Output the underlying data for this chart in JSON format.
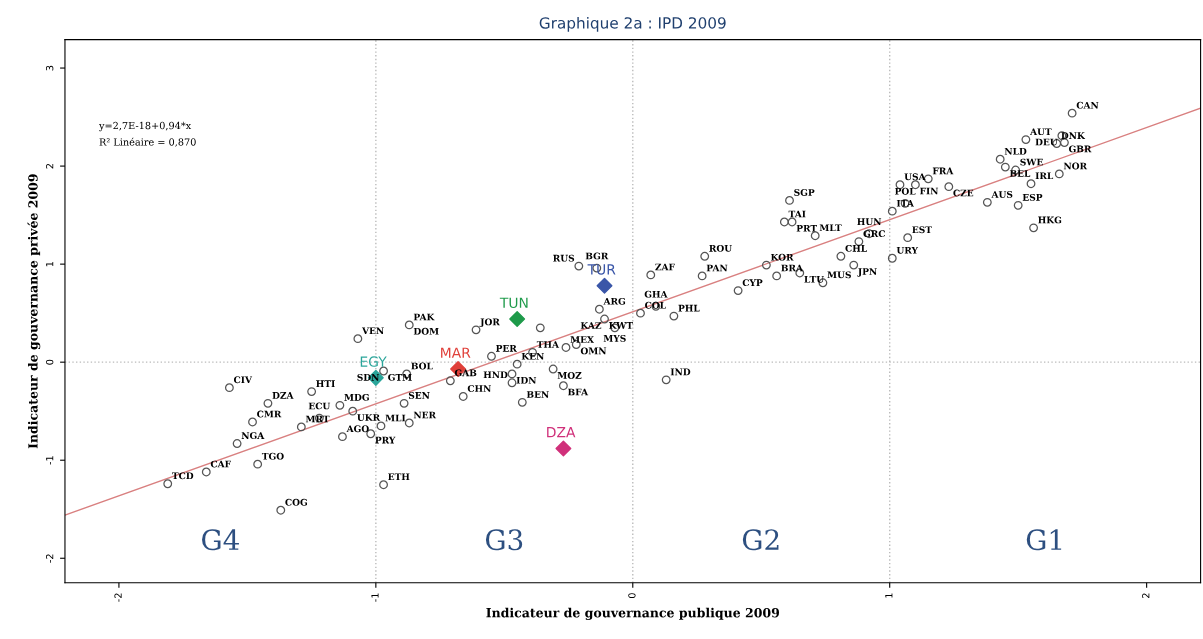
{
  "chart_data": {
    "type": "scatter",
    "title": "Graphique 2a : IPD 2009",
    "xlabel": "Indicateur de gouvernance publique 2009",
    "ylabel": "Indicateur de gouvernance privée 2009",
    "xlim": [
      -2.21,
      2.21
    ],
    "ylim": [
      -2.25,
      3.29
    ],
    "xticks": [
      -2,
      -1,
      0,
      1,
      2
    ],
    "yticks": [
      -2,
      -1,
      0,
      1,
      2,
      3
    ],
    "grid": false,
    "ref_lines": [
      {
        "axis": "x",
        "value": -1,
        "color": "#bbbbbb",
        "line_style": "dotted"
      },
      {
        "axis": "x",
        "value": 0,
        "color": "#bbbbbb",
        "line_style": "dotted"
      },
      {
        "axis": "x",
        "value": 1,
        "color": "#bbbbbb",
        "line_style": "dotted"
      },
      {
        "axis": "y",
        "value": 0,
        "color": "#bbbbbb",
        "line_style": "dotted"
      }
    ],
    "series": [
      {
        "marker": "circle",
        "color": "#555555",
        "x": [
          -1.07,
          -0.87,
          -1.57,
          -1.25,
          -1.42,
          -1.48,
          -1.54,
          -1.66,
          -1.81,
          -1.46,
          -1.37,
          -1.29,
          -1.22,
          -1.14,
          -1.09,
          -1.13,
          -1.02,
          -0.98,
          -0.97,
          -0.97,
          -0.88,
          -0.89,
          -0.87,
          -0.71,
          -0.66,
          -0.61,
          -0.55,
          -0.45,
          -0.47,
          -0.47,
          -0.43,
          -0.39,
          -0.36,
          -0.26,
          -0.22,
          -0.31,
          -0.27,
          -0.21,
          -0.14,
          -0.13,
          -0.11,
          -0.07,
          0.03,
          0.07,
          0.09,
          0.16,
          0.13,
          0.28,
          0.27,
          0.41,
          0.52,
          0.56,
          0.59,
          0.62,
          0.61,
          0.65,
          0.71,
          0.74,
          0.81,
          0.86,
          0.88,
          0.92,
          1.01,
          1.01,
          1.04,
          1.06,
          1.07,
          1.1,
          1.15,
          1.23,
          1.38,
          1.43,
          1.45,
          1.49,
          1.5,
          1.53,
          1.55,
          1.56,
          1.65,
          1.66,
          1.67,
          1.68,
          1.71
        ],
        "values": [
          0.24,
          0.38,
          -0.26,
          -0.3,
          -0.42,
          -0.61,
          -0.83,
          -1.12,
          -1.24,
          -1.04,
          -1.51,
          -0.66,
          -0.57,
          -0.44,
          -0.5,
          -0.76,
          -0.73,
          -0.65,
          -1.25,
          -0.09,
          -0.12,
          -0.42,
          -0.62,
          -0.19,
          -0.35,
          0.33,
          0.06,
          -0.02,
          -0.12,
          -0.21,
          -0.41,
          0.1,
          0.35,
          0.15,
          0.18,
          -0.07,
          -0.24,
          0.98,
          0.96,
          0.54,
          0.44,
          0.35,
          0.5,
          0.89,
          0.57,
          0.47,
          -0.18,
          1.08,
          0.88,
          0.73,
          0.99,
          0.88,
          1.43,
          1.43,
          1.65,
          0.91,
          1.29,
          0.81,
          1.08,
          0.99,
          1.23,
          1.31,
          1.54,
          1.06,
          1.81,
          1.62,
          1.27,
          1.81,
          1.87,
          1.79,
          1.63,
          2.07,
          1.99,
          1.96,
          1.6,
          2.27,
          1.82,
          1.37,
          2.23,
          1.92,
          2.31,
          2.24,
          2.54
        ]
      },
      {
        "marker": "diamond",
        "name": "EGY",
        "color": "#2aa59a",
        "x": [
          -1.0
        ],
        "values": [
          -0.16
        ]
      },
      {
        "marker": "diamond",
        "name": "MAR",
        "color": "#e0403a",
        "x": [
          -0.68
        ],
        "values": [
          -0.07
        ]
      },
      {
        "marker": "diamond",
        "name": "TUN",
        "color": "#1e9a4a",
        "x": [
          -0.45
        ],
        "values": [
          0.44
        ]
      },
      {
        "marker": "diamond",
        "name": "TUR",
        "color": "#3a56a8",
        "x": [
          -0.11
        ],
        "values": [
          0.78
        ]
      },
      {
        "marker": "diamond",
        "name": "DZA",
        "color": "#d0307a",
        "x": [
          -0.27
        ],
        "values": [
          -0.88
        ]
      },
      {
        "type": "line",
        "marker": "none",
        "color": "#d98080",
        "x": [
          -2.21,
          2.21
        ],
        "values": [
          -1.56,
          2.59
        ]
      }
    ],
    "annotations": [
      "y=2,7E-18+0,94*x",
      "R² Linéaire = 0,870",
      "G4",
      "G3",
      "G2",
      "G1",
      {
        "text": "VEN",
        "x": -1.07,
        "y": 0.24
      },
      {
        "text": "PAK",
        "x": -0.87,
        "y": 0.38
      },
      {
        "text": "DOM",
        "x": -0.87,
        "y": 0.38
      },
      {
        "text": "CIV",
        "x": -1.57,
        "y": -0.26
      },
      {
        "text": "HTI",
        "x": -1.25,
        "y": -0.3
      },
      {
        "text": "DZA",
        "x": -1.42,
        "y": -0.42
      },
      {
        "text": "CMR",
        "x": -1.48,
        "y": -0.61
      },
      {
        "text": "NGA",
        "x": -1.54,
        "y": -0.83
      },
      {
        "text": "CAF",
        "x": -1.66,
        "y": -1.12
      },
      {
        "text": "TCD",
        "x": -1.81,
        "y": -1.24
      },
      {
        "text": "TGO",
        "x": -1.46,
        "y": -1.04
      },
      {
        "text": "COG",
        "x": -1.37,
        "y": -1.51
      },
      {
        "text": "MRT",
        "x": -1.29,
        "y": -0.66
      },
      {
        "text": "ECU",
        "x": -1.22,
        "y": -0.57
      },
      {
        "text": "MDG",
        "x": -1.14,
        "y": -0.44
      },
      {
        "text": "UKR",
        "x": -1.09,
        "y": -0.5
      },
      {
        "text": "AGO",
        "x": -1.13,
        "y": -0.76
      },
      {
        "text": "PRY",
        "x": -1.02,
        "y": -0.73
      },
      {
        "text": "MLI",
        "x": -0.98,
        "y": -0.65
      },
      {
        "text": "ETH",
        "x": -0.97,
        "y": -1.25
      },
      {
        "text": "GTM",
        "x": -0.97,
        "y": -0.09
      },
      {
        "text": "SDN",
        "x": -0.97,
        "y": -0.09
      },
      {
        "text": "BOL",
        "x": -0.88,
        "y": -0.12
      },
      {
        "text": "SEN",
        "x": -0.89,
        "y": -0.42
      },
      {
        "text": "NER",
        "x": -0.87,
        "y": -0.62
      },
      {
        "text": "GAB",
        "x": -0.71,
        "y": -0.19
      },
      {
        "text": "CHN",
        "x": -0.66,
        "y": -0.35
      },
      {
        "text": "JOR",
        "x": -0.61,
        "y": 0.33
      },
      {
        "text": "PER",
        "x": -0.55,
        "y": 0.06
      },
      {
        "text": "KEN",
        "x": -0.45,
        "y": -0.02
      },
      {
        "text": "IDN",
        "x": -0.47,
        "y": -0.12
      },
      {
        "text": "HND",
        "x": -0.47,
        "y": -0.21
      },
      {
        "text": "BEN",
        "x": -0.43,
        "y": -0.41
      },
      {
        "text": "THA",
        "x": -0.39,
        "y": 0.1
      },
      {
        "text": "MEX",
        "x": -0.26,
        "y": 0.15
      },
      {
        "text": "OMN",
        "x": -0.22,
        "y": 0.18
      },
      {
        "text": "KAZ",
        "x": -0.22,
        "y": 0.18
      },
      {
        "text": "MOZ",
        "x": -0.31,
        "y": -0.07
      },
      {
        "text": "BFA",
        "x": -0.27,
        "y": -0.24
      },
      {
        "text": "RUS",
        "x": -0.21,
        "y": 0.98
      },
      {
        "text": "BGR",
        "x": -0.14,
        "y": 0.96
      },
      {
        "text": "ARG",
        "x": -0.13,
        "y": 0.54
      },
      {
        "text": "KWT",
        "x": -0.11,
        "y": 0.44
      },
      {
        "text": "MYS",
        "x": -0.07,
        "y": 0.35
      },
      {
        "text": "COL",
        "x": 0.03,
        "y": 0.5
      },
      {
        "text": "ZAF",
        "x": 0.07,
        "y": 0.89
      },
      {
        "text": "GHA",
        "x": 0.09,
        "y": 0.57
      },
      {
        "text": "PHL",
        "x": 0.16,
        "y": 0.47
      },
      {
        "text": "IND",
        "x": 0.13,
        "y": -0.18
      },
      {
        "text": "ROU",
        "x": 0.28,
        "y": 1.08
      },
      {
        "text": "PAN",
        "x": 0.27,
        "y": 0.88
      },
      {
        "text": "CYP",
        "x": 0.41,
        "y": 0.73
      },
      {
        "text": "KOR",
        "x": 0.52,
        "y": 0.99
      },
      {
        "text": "BRA",
        "x": 0.56,
        "y": 0.88
      },
      {
        "text": "TAI",
        "x": 0.59,
        "y": 1.43
      },
      {
        "text": "PRT",
        "x": 0.62,
        "y": 1.43
      },
      {
        "text": "SGP",
        "x": 0.61,
        "y": 1.65
      },
      {
        "text": "LTU",
        "x": 0.65,
        "y": 0.91
      },
      {
        "text": "MLT",
        "x": 0.71,
        "y": 1.29
      },
      {
        "text": "MUS",
        "x": 0.74,
        "y": 0.81
      },
      {
        "text": "CHL",
        "x": 0.81,
        "y": 1.08
      },
      {
        "text": "JPN",
        "x": 0.86,
        "y": 0.99
      },
      {
        "text": "GRC",
        "x": 0.88,
        "y": 1.23
      },
      {
        "text": "HUN",
        "x": 0.92,
        "y": 1.31
      },
      {
        "text": "ITA",
        "x": 1.01,
        "y": 1.54
      },
      {
        "text": "URY",
        "x": 1.01,
        "y": 1.06
      },
      {
        "text": "USA",
        "x": 1.04,
        "y": 1.81
      },
      {
        "text": "POL",
        "x": 1.06,
        "y": 1.62
      },
      {
        "text": "EST",
        "x": 1.07,
        "y": 1.27
      },
      {
        "text": "FIN",
        "x": 1.1,
        "y": 1.81
      },
      {
        "text": "FRA",
        "x": 1.15,
        "y": 1.87
      },
      {
        "text": "CZE",
        "x": 1.23,
        "y": 1.79
      },
      {
        "text": "AUS",
        "x": 1.38,
        "y": 1.63
      },
      {
        "text": "NLD",
        "x": 1.43,
        "y": 2.07
      },
      {
        "text": "BEL",
        "x": 1.45,
        "y": 1.99
      },
      {
        "text": "SWE",
        "x": 1.49,
        "y": 1.96
      },
      {
        "text": "ESP",
        "x": 1.5,
        "y": 1.6
      },
      {
        "text": "AUT",
        "x": 1.53,
        "y": 2.27
      },
      {
        "text": "IRL",
        "x": 1.55,
        "y": 1.82
      },
      {
        "text": "HKG",
        "x": 1.56,
        "y": 1.37
      },
      {
        "text": "DNK",
        "x": 1.65,
        "y": 2.23
      },
      {
        "text": "NOR",
        "x": 1.66,
        "y": 1.92
      },
      {
        "text": "DEU",
        "x": 1.67,
        "y": 2.31
      },
      {
        "text": "GBR",
        "x": 1.68,
        "y": 2.24
      },
      {
        "text": "CAN",
        "x": 1.71,
        "y": 2.54
      }
    ]
  }
}
